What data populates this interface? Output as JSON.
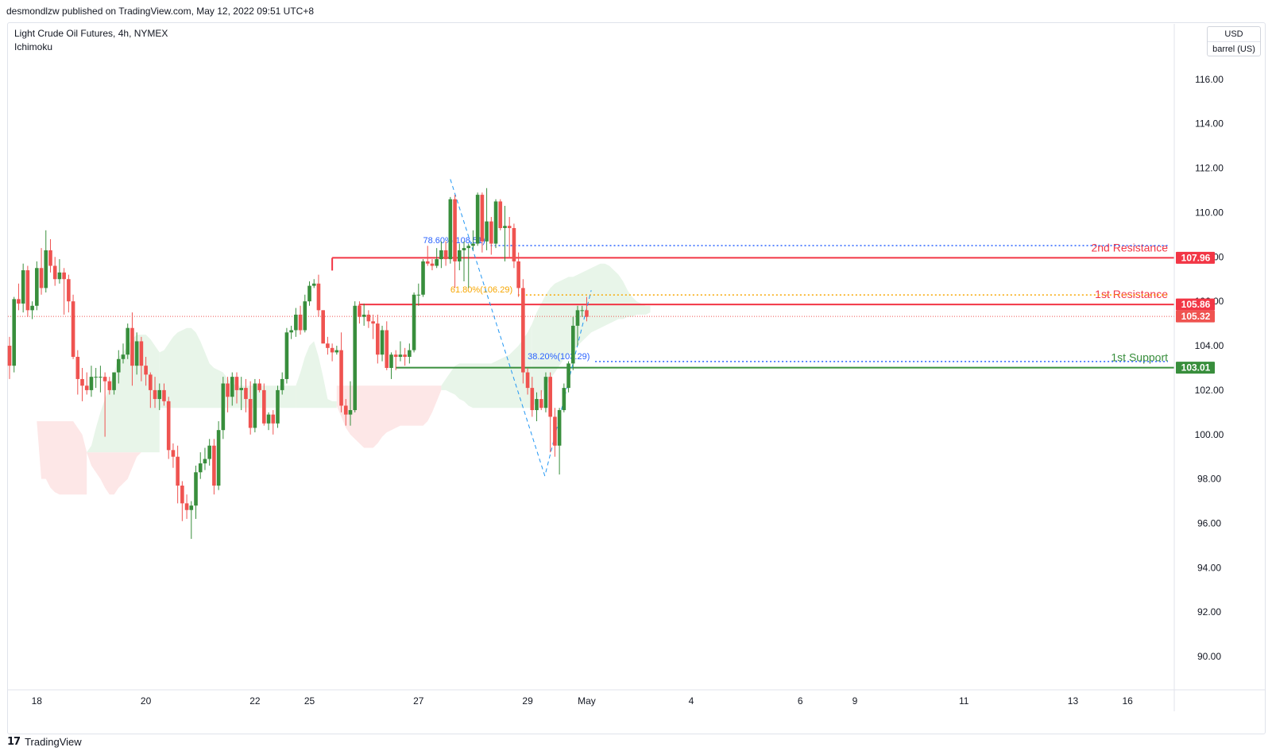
{
  "header": {
    "publish_line": "desmondlzw published on TradingView.com, May 12, 2022 09:51 UTC+8"
  },
  "legend": {
    "instrument": "Light Crude Oil Futures, 4h, NYMEX",
    "indicator": "Ichimoku"
  },
  "units": {
    "currency": "USD",
    "unit": "barrel (US)"
  },
  "footer": {
    "brand": "TradingView"
  },
  "colors": {
    "up": "#388e3c",
    "down": "#ef5350",
    "resistance": "#f23645",
    "support": "#388e3c",
    "fib_786": "#2962ff",
    "fib_618": "#f7a600",
    "fib_382": "#2962ff",
    "cloud_bull": "#e8f5e9",
    "cloud_bear": "#fde7e7",
    "trend": "#2196f3"
  },
  "chart_data": {
    "type": "candlestick",
    "ylim": [
      88.5,
      118.5
    ],
    "y_ticks": [
      90,
      92,
      94,
      96,
      98,
      100,
      102,
      104,
      106,
      108,
      110,
      112,
      114,
      116
    ],
    "y_tick_labels": [
      "90.00",
      "92.00",
      "94.00",
      "96.00",
      "98.00",
      "100.00",
      "102.00",
      "104.00",
      "106.00",
      "108.00",
      "110.00",
      "112.00",
      "114.00",
      "116.00"
    ],
    "x_labels": [
      {
        "label": "18",
        "t": 6
      },
      {
        "label": "20",
        "t": 30
      },
      {
        "label": "22",
        "t": 54
      },
      {
        "label": "25",
        "t": 66
      },
      {
        "label": "27",
        "t": 90
      },
      {
        "label": "29",
        "t": 114
      },
      {
        "label": "May",
        "t": 127
      },
      {
        "label": "4",
        "t": 150
      },
      {
        "label": "6",
        "t": 174
      },
      {
        "label": "9",
        "t": 186
      },
      {
        "label": "11",
        "t": 210
      },
      {
        "label": "13",
        "t": 234
      },
      {
        "label": "16",
        "t": 246
      }
    ],
    "candles": [
      [
        104.0,
        104.4,
        102.5,
        103.1
      ],
      [
        103.1,
        106.2,
        102.8,
        106.1
      ],
      [
        106.1,
        106.8,
        105.6,
        105.9
      ],
      [
        105.9,
        107.7,
        105.5,
        107.4
      ],
      [
        107.4,
        107.6,
        105.3,
        105.6
      ],
      [
        105.6,
        106.0,
        105.2,
        105.8
      ],
      [
        105.8,
        107.8,
        105.6,
        107.5
      ],
      [
        107.5,
        108.4,
        106.3,
        106.6
      ],
      [
        106.6,
        109.2,
        106.4,
        108.3
      ],
      [
        108.3,
        108.8,
        107.3,
        107.6
      ],
      [
        107.6,
        108.0,
        106.7,
        107.0
      ],
      [
        107.0,
        107.9,
        106.8,
        107.3
      ],
      [
        107.3,
        107.5,
        105.4,
        107.0
      ],
      [
        107.0,
        107.2,
        105.5,
        106.0
      ],
      [
        106.0,
        106.3,
        103.4,
        103.5
      ],
      [
        103.5,
        103.8,
        101.8,
        102.5
      ],
      [
        102.5,
        103.0,
        101.5,
        102.2
      ],
      [
        102.2,
        102.8,
        101.8,
        102.0
      ],
      [
        102.0,
        103.1,
        101.7,
        102.6
      ],
      [
        102.6,
        103.0,
        102.1,
        102.6
      ],
      [
        102.6,
        103.1,
        101.9,
        102.6
      ],
      [
        102.6,
        102.8,
        99.9,
        102.4
      ],
      [
        102.4,
        102.6,
        101.8,
        102.0
      ],
      [
        102.0,
        102.8,
        101.8,
        102.8
      ],
      [
        102.8,
        103.8,
        102.3,
        103.4
      ],
      [
        103.4,
        104.1,
        103.2,
        103.6
      ],
      [
        103.6,
        105.0,
        103.4,
        104.8
      ],
      [
        104.8,
        105.5,
        102.2,
        103.1
      ],
      [
        103.1,
        104.6,
        102.7,
        104.2
      ],
      [
        104.2,
        104.4,
        102.4,
        103.1
      ],
      [
        103.1,
        103.5,
        102.2,
        102.7
      ],
      [
        102.7,
        102.8,
        101.2,
        102.0
      ],
      [
        102.0,
        102.6,
        101.2,
        101.6
      ],
      [
        101.6,
        102.3,
        101.1,
        102.0
      ],
      [
        102.0,
        102.3,
        101.3,
        101.5
      ],
      [
        101.5,
        101.7,
        98.9,
        99.3
      ],
      [
        99.3,
        99.6,
        98.5,
        99.0
      ],
      [
        99.0,
        99.5,
        96.9,
        97.7
      ],
      [
        97.7,
        97.9,
        96.1,
        96.9
      ],
      [
        96.9,
        97.3,
        96.2,
        96.6
      ],
      [
        96.6,
        97.0,
        95.3,
        96.8
      ],
      [
        96.8,
        98.6,
        96.2,
        98.3
      ],
      [
        98.3,
        99.2,
        98.0,
        98.7
      ],
      [
        98.7,
        99.4,
        98.4,
        98.9
      ],
      [
        98.9,
        99.8,
        98.6,
        99.5
      ],
      [
        99.5,
        99.8,
        97.3,
        97.7
      ],
      [
        97.7,
        100.6,
        97.5,
        100.2
      ],
      [
        100.2,
        102.6,
        99.8,
        102.3
      ],
      [
        102.3,
        102.6,
        101.0,
        101.7
      ],
      [
        101.7,
        102.8,
        101.3,
        102.6
      ],
      [
        102.6,
        102.8,
        101.4,
        102.0
      ],
      [
        102.0,
        102.6,
        101.1,
        102.1
      ],
      [
        102.1,
        102.5,
        101.0,
        101.6
      ],
      [
        101.6,
        102.4,
        100.0,
        100.3
      ],
      [
        100.3,
        102.5,
        100.1,
        102.3
      ],
      [
        102.3,
        102.5,
        101.9,
        102.0
      ],
      [
        102.0,
        102.3,
        100.4,
        100.5
      ],
      [
        100.5,
        101.0,
        100.2,
        100.9
      ],
      [
        100.9,
        101.1,
        100.0,
        100.5
      ],
      [
        100.5,
        102.2,
        100.3,
        102.0
      ],
      [
        102.0,
        102.8,
        101.8,
        102.5
      ],
      [
        102.5,
        104.8,
        102.3,
        104.6
      ],
      [
        104.6,
        104.9,
        104.3,
        104.7
      ],
      [
        104.7,
        105.7,
        104.4,
        105.4
      ],
      [
        105.4,
        105.8,
        104.5,
        104.7
      ],
      [
        104.7,
        106.3,
        104.6,
        106.0
      ],
      [
        106.0,
        106.9,
        105.8,
        106.7
      ],
      [
        106.7,
        107.0,
        106.6,
        106.8
      ],
      [
        106.8,
        107.2,
        105.3,
        105.6
      ],
      [
        105.6,
        105.6,
        104.1,
        104.1
      ],
      [
        104.1,
        104.4,
        103.6,
        103.9
      ],
      [
        103.9,
        104.1,
        103.3,
        103.7
      ],
      [
        103.7,
        104.0,
        103.6,
        103.8
      ],
      [
        103.8,
        104.6,
        101.0,
        101.3
      ],
      [
        101.3,
        101.6,
        100.4,
        100.9
      ],
      [
        100.9,
        102.4,
        100.4,
        101.1
      ],
      [
        101.1,
        106.0,
        101.0,
        105.8
      ],
      [
        105.8,
        106.0,
        105.0,
        105.3
      ],
      [
        105.3,
        105.9,
        104.9,
        105.4
      ],
      [
        105.4,
        105.6,
        104.8,
        105.1
      ],
      [
        105.1,
        105.4,
        104.3,
        105.0
      ],
      [
        105.0,
        105.4,
        103.2,
        103.6
      ],
      [
        103.6,
        104.9,
        103.3,
        104.7
      ],
      [
        104.7,
        105.1,
        102.9,
        103.0
      ],
      [
        103.0,
        103.7,
        102.5,
        103.6
      ],
      [
        103.6,
        103.8,
        102.9,
        103.5
      ],
      [
        103.5,
        104.2,
        103.3,
        103.6
      ],
      [
        103.6,
        103.9,
        103.1,
        103.5
      ],
      [
        103.5,
        104.1,
        103.2,
        103.8
      ],
      [
        103.8,
        106.4,
        103.7,
        106.3
      ],
      [
        106.3,
        106.8,
        105.8,
        106.3
      ],
      [
        106.3,
        107.9,
        106.2,
        107.8
      ],
      [
        107.8,
        108.5,
        107.6,
        107.7
      ],
      [
        107.7,
        107.9,
        107.4,
        107.6
      ],
      [
        107.6,
        108.4,
        107.5,
        107.9
      ],
      [
        107.9,
        108.7,
        107.5,
        108.3
      ],
      [
        108.3,
        108.7,
        107.6,
        107.9
      ],
      [
        107.9,
        110.7,
        107.7,
        110.6
      ],
      [
        110.6,
        110.8,
        106.6,
        107.8
      ],
      [
        107.8,
        108.6,
        107.4,
        108.3
      ],
      [
        108.3,
        108.7,
        106.9,
        108.4
      ],
      [
        108.4,
        108.6,
        106.6,
        108.5
      ],
      [
        108.5,
        109.2,
        108.3,
        108.6
      ],
      [
        108.6,
        110.9,
        108.5,
        110.8
      ],
      [
        110.8,
        110.9,
        108.2,
        108.7
      ],
      [
        108.7,
        111.1,
        108.3,
        109.6
      ],
      [
        109.6,
        109.8,
        108.1,
        108.6
      ],
      [
        108.6,
        110.6,
        108.4,
        110.5
      ],
      [
        110.5,
        110.6,
        109.2,
        109.3
      ],
      [
        109.3,
        110.3,
        107.8,
        109.4
      ],
      [
        109.4,
        109.8,
        108.0,
        109.3
      ],
      [
        109.3,
        109.5,
        107.5,
        107.8
      ],
      [
        107.8,
        108.2,
        106.2,
        106.6
      ],
      [
        106.6,
        107.0,
        102.3,
        102.8
      ],
      [
        102.8,
        103.0,
        101.8,
        102.1
      ],
      [
        102.1,
        102.6,
        100.8,
        101.1
      ],
      [
        101.1,
        101.9,
        100.6,
        101.6
      ],
      [
        101.6,
        102.0,
        101.1,
        101.2
      ],
      [
        101.2,
        102.8,
        101.0,
        102.6
      ],
      [
        102.6,
        102.8,
        99.2,
        100.8
      ],
      [
        100.8,
        101.2,
        99.0,
        99.5
      ],
      [
        99.5,
        101.2,
        98.2,
        101.1
      ],
      [
        101.1,
        102.3,
        101.0,
        102.1
      ],
      [
        102.1,
        103.3,
        101.9,
        103.2
      ],
      [
        103.2,
        105.3,
        102.9,
        104.9
      ],
      [
        104.9,
        105.8,
        104.0,
        105.6
      ],
      [
        105.6,
        105.8,
        105.3,
        105.6
      ],
      [
        105.6,
        106.2,
        105.1,
        105.3
      ]
    ],
    "cloud": [
      {
        "x0": 0,
        "x1": 17,
        "top": [
          101.2,
          101.2,
          101.2,
          101.0,
          101.0,
          100.6,
          100.6,
          100.6,
          100.6,
          100.6,
          100.6,
          100.6,
          100.6,
          100.6,
          100.6,
          100.3,
          100.0,
          99.2
        ],
        "bottom": [
          101.2,
          101.2,
          101.2,
          101.0,
          101.0,
          100.6,
          100.6,
          98.0,
          98.0,
          97.6,
          97.4,
          97.3,
          97.3,
          97.3,
          97.3,
          97.3,
          97.3,
          97.3
        ],
        "kind": "bear"
      },
      {
        "x0": 17,
        "x1": 33,
        "top": [
          99.2,
          99.2,
          99.2,
          99.2,
          99.2,
          99.2,
          99.2,
          99.2,
          99.2,
          99.2,
          99.2,
          99.2,
          99.2,
          99.2,
          99.2,
          99.2,
          99.2
        ],
        "bottom": [
          99.2,
          98.6,
          98.3,
          98.0,
          97.6,
          97.3,
          97.3,
          97.6,
          97.8,
          98.0,
          98.5,
          99.0,
          99.2,
          99.2,
          99.2,
          99.2,
          99.2
        ],
        "kind": "bear"
      },
      {
        "x0": 17,
        "x1": 33,
        "top": [
          99.2,
          99.5,
          100.3,
          101.0,
          101.6,
          102.2,
          102.8,
          103.5,
          103.7,
          104.0,
          104.3,
          104.5,
          104.5,
          104.5,
          104.3,
          104.0,
          103.7
        ],
        "bottom": [
          99.2,
          99.2,
          99.2,
          99.2,
          99.2,
          99.2,
          99.2,
          99.2,
          99.2,
          99.2,
          99.2,
          99.2,
          99.2,
          99.2,
          99.2,
          99.2,
          99.2
        ],
        "kind": "bull"
      },
      {
        "x0": 33,
        "x1": 50,
        "top": [
          103.7,
          103.8,
          104.1,
          104.4,
          104.6,
          104.7,
          104.8,
          104.8,
          104.6,
          104.2,
          103.7,
          103.2,
          103.0,
          102.9,
          102.8,
          102.5,
          102.3,
          102.2
        ],
        "bottom": [
          101.2,
          101.2,
          101.2,
          101.2,
          101.2,
          101.2,
          101.2,
          101.2,
          101.2,
          101.2,
          101.2,
          101.2,
          101.2,
          101.2,
          101.2,
          101.2,
          101.2,
          101.2
        ],
        "kind": "bull"
      },
      {
        "x0": 50,
        "x1": 63,
        "top": [
          102.2,
          102.2,
          102.2,
          102.2,
          102.2,
          102.2,
          102.2,
          102.2,
          102.2,
          102.2,
          102.2,
          102.2,
          102.2,
          102.2
        ],
        "bottom": [
          101.2,
          101.2,
          101.2,
          101.2,
          101.2,
          101.2,
          101.2,
          101.2,
          101.2,
          101.2,
          101.2,
          101.2,
          101.2,
          101.2
        ],
        "kind": "bull"
      },
      {
        "x0": 63,
        "x1": 68,
        "top": [
          102.2,
          102.8,
          103.5,
          104.0,
          104.2,
          103.5
        ],
        "bottom": [
          101.2,
          101.2,
          101.2,
          101.2,
          101.2,
          101.2
        ],
        "kind": "bull"
      },
      {
        "x0": 68,
        "x1": 72,
        "top": [
          103.5,
          102.6,
          101.6,
          101.5,
          101.5
        ],
        "bottom": [
          101.2,
          101.2,
          101.2,
          101.2,
          101.2
        ],
        "kind": "bull"
      },
      {
        "x0": 72,
        "x1": 95,
        "top": [
          102.2,
          102.2,
          102.2,
          102.2,
          102.2,
          102.2,
          102.2,
          102.2,
          102.2,
          102.2,
          102.2,
          102.2,
          102.2,
          102.2,
          102.2,
          102.2,
          102.2,
          102.2,
          102.2,
          102.2,
          102.2,
          102.2,
          102.2,
          102.2
        ],
        "bottom": [
          101.3,
          100.8,
          100.3,
          100.0,
          99.8,
          99.6,
          99.4,
          99.4,
          99.4,
          99.6,
          99.9,
          100.1,
          100.2,
          100.3,
          100.4,
          100.4,
          100.4,
          100.4,
          100.4,
          100.4,
          100.6,
          101.0,
          101.5,
          102.0
        ],
        "kind": "bear"
      },
      {
        "x0": 95,
        "x1": 115,
        "top": [
          102.2,
          102.5,
          102.8,
          103.1,
          103.2,
          103.2,
          103.2,
          103.2,
          103.2,
          103.2,
          103.2,
          103.2,
          103.3,
          103.4,
          103.5,
          103.6,
          103.8,
          104.0,
          104.3,
          104.6,
          105.0
        ],
        "bottom": [
          102.0,
          102.0,
          101.9,
          101.8,
          101.6,
          101.5,
          101.3,
          101.2,
          101.2,
          101.2,
          101.2,
          101.2,
          101.2,
          101.2,
          101.2,
          101.2,
          101.2,
          101.2,
          101.2,
          101.2,
          101.2
        ],
        "kind": "bull"
      },
      {
        "x0": 115,
        "x1": 141,
        "top": [
          105.0,
          105.5,
          105.9,
          106.3,
          106.6,
          106.8,
          106.9,
          107.0,
          107.1,
          107.1,
          107.2,
          107.3,
          107.4,
          107.5,
          107.6,
          107.7,
          107.7,
          107.6,
          107.4,
          107.2,
          106.9,
          106.5,
          106.2,
          106.0,
          105.9,
          105.8,
          105.8
        ],
        "bottom": [
          101.2,
          101.5,
          101.8,
          102.2,
          102.5,
          102.8,
          103.1,
          103.4,
          103.6,
          103.8,
          104.0,
          104.2,
          104.4,
          104.6,
          104.7,
          104.8,
          104.9,
          105.0,
          105.1,
          105.2,
          105.2,
          105.3,
          105.3,
          105.4,
          105.4,
          105.4,
          105.5
        ],
        "kind": "bull"
      }
    ],
    "levels": {
      "second_resistance": {
        "label": "2nd Resistance",
        "value": 107.96,
        "value_label": "107.96",
        "from_t": 71
      },
      "first_resistance": {
        "label": "1st Resistance",
        "value": 105.86,
        "value_label": "105.86",
        "from_t": 77
      },
      "first_support": {
        "label": "1st Support",
        "value": 103.01,
        "value_label": "103.01",
        "from_t": 85
      },
      "last_price": {
        "value": 105.32,
        "value_label": "105.32"
      }
    },
    "fibs": [
      {
        "label": "78.60%(108.51)",
        "value": 108.51,
        "from_t": 91,
        "to_t": 133,
        "kind": "fib_786"
      },
      {
        "label": "61.80%(106.29)",
        "value": 106.29,
        "from_t": 97,
        "to_t": 137,
        "kind": "fib_618"
      },
      {
        "label": "38.20%(103.29)",
        "value": 103.29,
        "from_t": 114,
        "to_t": 137,
        "kind": "fib_382"
      }
    ],
    "trendlines": [
      {
        "t0": 97,
        "v0": 111.5,
        "t1": 118,
        "v1": 98.0
      },
      {
        "t0": 118,
        "v0": 98.3,
        "t1": 128,
        "v1": 106.5
      }
    ]
  }
}
